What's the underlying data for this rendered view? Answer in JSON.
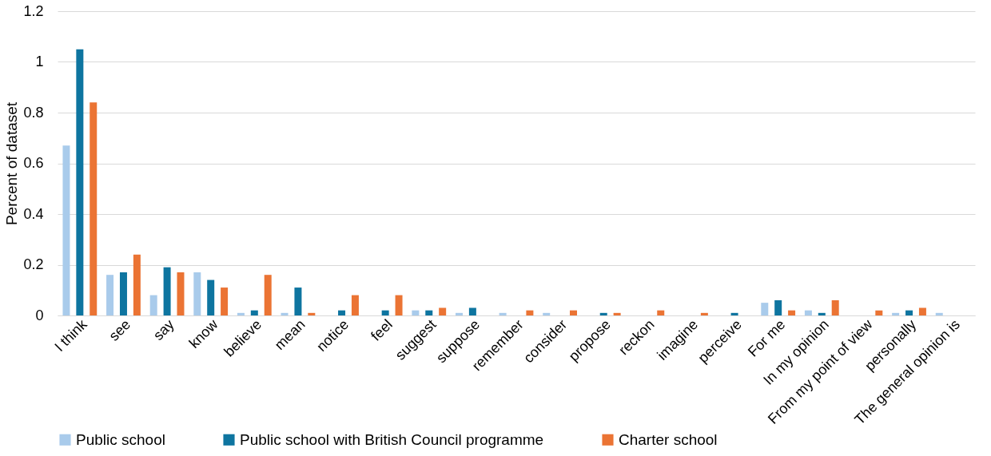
{
  "chart_data": {
    "type": "bar",
    "ylabel": "Percent of dataset",
    "categories": [
      "I think",
      "see",
      "say",
      "know",
      "believe",
      "mean",
      "notice",
      "feel",
      "suggest",
      "suppose",
      "remember",
      "consider",
      "propose",
      "reckon",
      "imagine",
      "perceive",
      "For me",
      "In my opinion",
      "From my point of view",
      "personally",
      "The general opinion is"
    ],
    "series": [
      {
        "name": "Public school",
        "color": "#a9cbeb",
        "values": [
          0.67,
          0.16,
          0.08,
          0.17,
          0.01,
          0.01,
          0,
          0,
          0.02,
          0.01,
          0.01,
          0.01,
          0,
          0,
          0,
          0,
          0.05,
          0.02,
          0,
          0.01,
          0.01
        ]
      },
      {
        "name": "Public school with British Council programme",
        "color": "#0e75a0",
        "values": [
          1.05,
          0.17,
          0.19,
          0.14,
          0.02,
          0.11,
          0.02,
          0.02,
          0.02,
          0.03,
          0,
          0,
          0.01,
          0,
          0,
          0.01,
          0.06,
          0.01,
          0,
          0.02,
          0
        ]
      },
      {
        "name": "Charter school",
        "color": "#eb7434",
        "values": [
          0.84,
          0.24,
          0.17,
          0.11,
          0.16,
          0.01,
          0.08,
          0.08,
          0.03,
          0,
          0.02,
          0.02,
          0.01,
          0.02,
          0.01,
          0,
          0.02,
          0.06,
          0.02,
          0.03,
          0
        ]
      }
    ],
    "ylim": [
      0,
      1.2
    ],
    "yticks": [
      0,
      0.2,
      0.4,
      0.6,
      0.8,
      1,
      1.2
    ],
    "grid": "y",
    "legend": "bottom"
  }
}
